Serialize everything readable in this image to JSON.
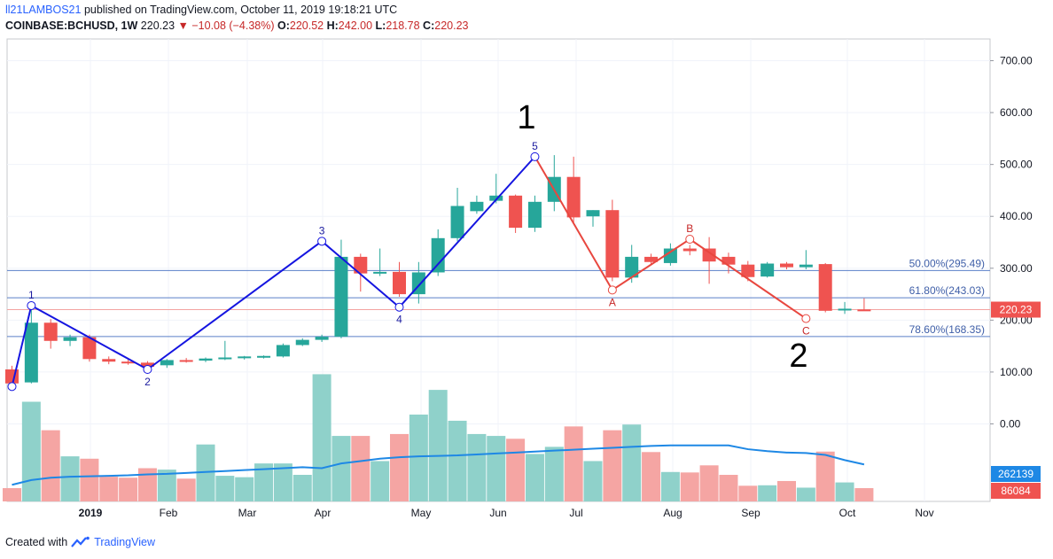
{
  "header": {
    "author": "ll21LAMBOS21",
    "published_text": "published on TradingView.com, October 11, 2019 19:18:21 UTC",
    "symbol": "COINBASE:BCHUSD, 1W",
    "last": "220.23",
    "change": "−10.08 (−4.38%)",
    "open_label": "O:",
    "open": "220.52",
    "high_label": "H:",
    "high": "242.00",
    "low_label": "L:",
    "low": "218.78",
    "close_label": "C:",
    "close": "220.23"
  },
  "footer": {
    "created_with": "Created with",
    "brand": "TradingView"
  },
  "colors": {
    "up": "#26a69a",
    "down": "#ef5350",
    "wave_impulse": "#1515e0",
    "wave_corrective": "#e8473f",
    "fib": "#5a7fc8",
    "volume_ma": "#1e88e5",
    "axis_text": "#131722"
  },
  "chart_data": {
    "type": "candlestick",
    "y_axis": {
      "min": 0,
      "max": 700,
      "ticks": [
        "0.00",
        "100.00",
        "200.00",
        "300.00",
        "400.00",
        "500.00",
        "600.00",
        "700.00"
      ],
      "position": "right"
    },
    "x_axis": {
      "labels": [
        "2019",
        "Feb",
        "Mar",
        "Apr",
        "May",
        "Jun",
        "Jul",
        "Aug",
        "Sep",
        "Oct",
        "Nov"
      ]
    },
    "candles": [
      {
        "o": 105,
        "h": 112,
        "l": 75,
        "c": 78
      },
      {
        "o": 80,
        "h": 230,
        "l": 78,
        "c": 195
      },
      {
        "o": 195,
        "h": 202,
        "l": 145,
        "c": 160
      },
      {
        "o": 160,
        "h": 172,
        "l": 150,
        "c": 167
      },
      {
        "o": 167,
        "h": 172,
        "l": 120,
        "c": 125
      },
      {
        "o": 125,
        "h": 130,
        "l": 115,
        "c": 120
      },
      {
        "o": 120,
        "h": 124,
        "l": 114,
        "c": 118
      },
      {
        "o": 118,
        "h": 121,
        "l": 105,
        "c": 110
      },
      {
        "o": 113,
        "h": 125,
        "l": 108,
        "c": 123
      },
      {
        "o": 123,
        "h": 127,
        "l": 118,
        "c": 121
      },
      {
        "o": 122,
        "h": 128,
        "l": 119,
        "c": 126
      },
      {
        "o": 126,
        "h": 160,
        "l": 123,
        "c": 128
      },
      {
        "o": 127,
        "h": 131,
        "l": 124,
        "c": 130
      },
      {
        "o": 129,
        "h": 132,
        "l": 126,
        "c": 131
      },
      {
        "o": 130,
        "h": 155,
        "l": 128,
        "c": 152
      },
      {
        "o": 152,
        "h": 165,
        "l": 150,
        "c": 162
      },
      {
        "o": 162,
        "h": 172,
        "l": 158,
        "c": 168
      },
      {
        "o": 168,
        "h": 355,
        "l": 165,
        "c": 322
      },
      {
        "o": 322,
        "h": 328,
        "l": 255,
        "c": 290
      },
      {
        "o": 290,
        "h": 338,
        "l": 285,
        "c": 293
      },
      {
        "o": 293,
        "h": 312,
        "l": 245,
        "c": 250
      },
      {
        "o": 250,
        "h": 312,
        "l": 232,
        "c": 292
      },
      {
        "o": 292,
        "h": 375,
        "l": 285,
        "c": 358
      },
      {
        "o": 358,
        "h": 455,
        "l": 352,
        "c": 420
      },
      {
        "o": 410,
        "h": 440,
        "l": 405,
        "c": 428
      },
      {
        "o": 430,
        "h": 482,
        "l": 425,
        "c": 440
      },
      {
        "o": 440,
        "h": 442,
        "l": 368,
        "c": 378
      },
      {
        "o": 378,
        "h": 440,
        "l": 370,
        "c": 428
      },
      {
        "o": 428,
        "h": 518,
        "l": 410,
        "c": 476
      },
      {
        "o": 476,
        "h": 515,
        "l": 385,
        "c": 398
      },
      {
        "o": 400,
        "h": 412,
        "l": 380,
        "c": 412
      },
      {
        "o": 412,
        "h": 432,
        "l": 275,
        "c": 282
      },
      {
        "o": 282,
        "h": 345,
        "l": 272,
        "c": 322
      },
      {
        "o": 322,
        "h": 328,
        "l": 308,
        "c": 312
      },
      {
        "o": 310,
        "h": 348,
        "l": 305,
        "c": 338
      },
      {
        "o": 338,
        "h": 345,
        "l": 325,
        "c": 333
      },
      {
        "o": 338,
        "h": 360,
        "l": 270,
        "c": 313
      },
      {
        "o": 322,
        "h": 330,
        "l": 290,
        "c": 307
      },
      {
        "o": 307,
        "h": 314,
        "l": 275,
        "c": 283
      },
      {
        "o": 284,
        "h": 312,
        "l": 282,
        "c": 309
      },
      {
        "o": 309,
        "h": 312,
        "l": 298,
        "c": 302
      },
      {
        "o": 302,
        "h": 335,
        "l": 298,
        "c": 307
      },
      {
        "o": 308,
        "h": 310,
        "l": 215,
        "c": 218
      },
      {
        "o": 220,
        "h": 235,
        "l": 212,
        "c": 222
      },
      {
        "o": 220.52,
        "h": 242,
        "l": 218.78,
        "c": 220.23
      }
    ],
    "volume": [
      28,
      210,
      150,
      95,
      90,
      52,
      50,
      70,
      67,
      48,
      120,
      54,
      51,
      80,
      80,
      56,
      268,
      138,
      138,
      85,
      142,
      183,
      235,
      170,
      142,
      138,
      132,
      100,
      115,
      158,
      85,
      150,
      162,
      104,
      62,
      61,
      76,
      56,
      33,
      34,
      43,
      29,
      105,
      40,
      28
    ],
    "volume_ma": [
      35,
      45,
      50,
      52,
      53,
      54,
      55,
      57,
      58,
      60,
      62,
      64,
      66,
      68,
      70,
      72,
      70,
      80,
      85,
      90,
      93,
      95,
      96,
      97,
      99,
      101,
      103,
      105,
      107,
      109,
      111,
      113,
      115,
      117,
      118,
      118,
      118,
      118,
      110,
      106,
      103,
      102,
      98,
      87,
      78
    ],
    "volume_scale_max": 280,
    "volume_ma_label": "262139",
    "volume_last_label": "86084",
    "fib_levels": [
      {
        "label": "50.00%(295.49)",
        "price": 295.49
      },
      {
        "label": "61.80%(243.03)",
        "price": 243.03
      },
      {
        "label": "78.60%(168.35)",
        "price": 168.35
      }
    ],
    "last_price": {
      "label": "220.23",
      "price": 220.23
    },
    "waves": {
      "impulse": [
        {
          "label": "1",
          "idx": 1,
          "price": 228
        },
        {
          "label": "2",
          "idx": 7,
          "price": 105
        },
        {
          "label": "3",
          "idx": 16,
          "price": 352
        },
        {
          "label": "4",
          "idx": 20,
          "price": 225
        },
        {
          "label": "5",
          "idx": 27,
          "price": 515
        }
      ],
      "corrective": [
        {
          "label": "A",
          "idx": 31,
          "price": 258
        },
        {
          "label": "B",
          "idx": 35,
          "price": 356
        },
        {
          "label": "C",
          "idx": 41,
          "price": 203
        }
      ],
      "start": {
        "idx": 0,
        "price": 72
      }
    },
    "big_labels": [
      {
        "text": "1"
      },
      {
        "text": "2"
      }
    ]
  }
}
